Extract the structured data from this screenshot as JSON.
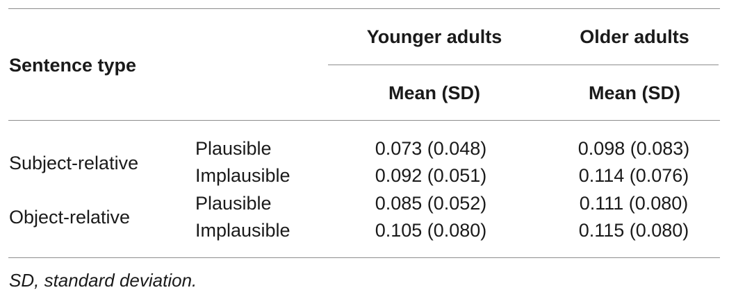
{
  "table": {
    "stub_header": "Sentence type",
    "groups": [
      {
        "label": "Younger adults",
        "sub_label": "Mean (SD)"
      },
      {
        "label": "Older adults",
        "sub_label": "Mean (SD)"
      }
    ],
    "sections": [
      {
        "label": "Subject-relative",
        "rows": [
          {
            "condition": "Plausible",
            "younger": "0.073 (0.048)",
            "older": "0.098 (0.083)"
          },
          {
            "condition": "Implausible",
            "younger": "0.092 (0.051)",
            "older": "0.114 (0.076)"
          }
        ]
      },
      {
        "label": "Object-relative",
        "rows": [
          {
            "condition": "Plausible",
            "younger": "0.085 (0.052)",
            "older": "0.111 (0.080)"
          },
          {
            "condition": "Implausible",
            "younger": "0.105 (0.080)",
            "older": "0.115 (0.080)"
          }
        ]
      }
    ],
    "footnote": "SD, standard deviation."
  }
}
